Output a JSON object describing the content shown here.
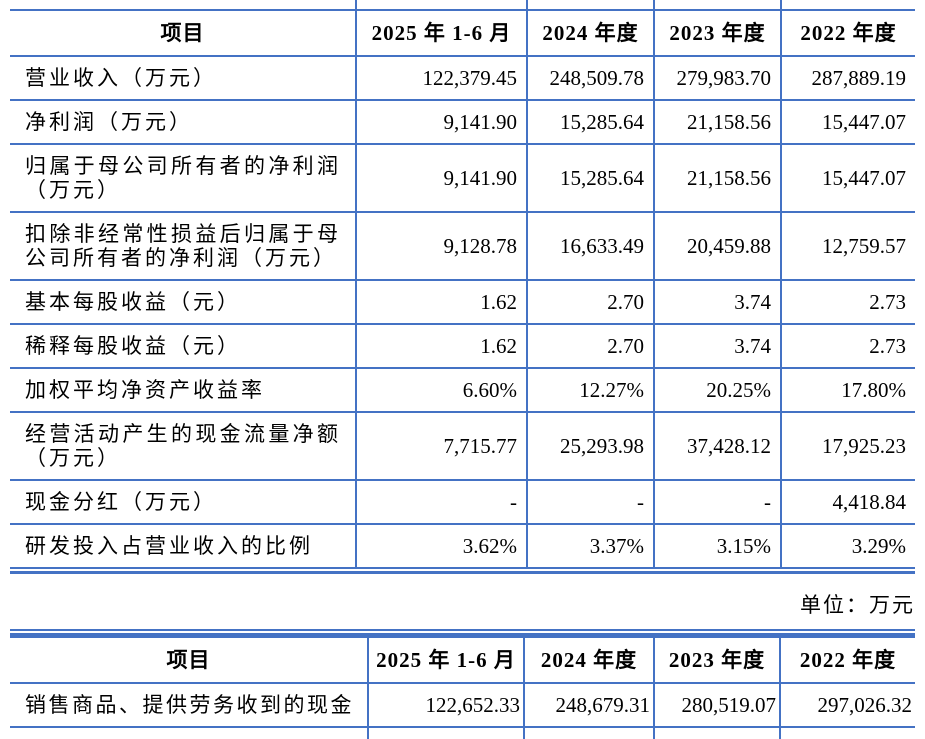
{
  "colors": {
    "table_border": "#4472C4",
    "text": "#000000",
    "background": "#ffffff"
  },
  "unit_label": "单位：万元",
  "table1": {
    "headers": [
      "项目",
      "2025 年 1-6 月",
      "2024 年度",
      "2023 年度",
      "2022 年度"
    ],
    "rows": [
      {
        "label": "营业收入（万元）",
        "values": [
          "122,379.45",
          "248,509.78",
          "279,983.70",
          "287,889.19"
        ]
      },
      {
        "label": "净利润（万元）",
        "values": [
          "9,141.90",
          "15,285.64",
          "21,158.56",
          "15,447.07"
        ]
      },
      {
        "label": "归属于母公司所有者的净利润（万元）",
        "values": [
          "9,141.90",
          "15,285.64",
          "21,158.56",
          "15,447.07"
        ]
      },
      {
        "label": "扣除非经常性损益后归属于母公司所有者的净利润（万元）",
        "values": [
          "9,128.78",
          "16,633.49",
          "20,459.88",
          "12,759.57"
        ]
      },
      {
        "label": "基本每股收益（元）",
        "values": [
          "1.62",
          "2.70",
          "3.74",
          "2.73"
        ]
      },
      {
        "label": "稀释每股收益（元）",
        "values": [
          "1.62",
          "2.70",
          "3.74",
          "2.73"
        ]
      },
      {
        "label": "加权平均净资产收益率",
        "values": [
          "6.60%",
          "12.27%",
          "20.25%",
          "17.80%"
        ]
      },
      {
        "label": "经营活动产生的现金流量净额（万元）",
        "values": [
          "7,715.77",
          "25,293.98",
          "37,428.12",
          "17,925.23"
        ]
      },
      {
        "label": "现金分红（万元）",
        "values": [
          "-",
          "-",
          "-",
          "4,418.84"
        ]
      },
      {
        "label": "研发投入占营业收入的比例",
        "values": [
          "3.62%",
          "3.37%",
          "3.15%",
          "3.29%"
        ]
      }
    ]
  },
  "table2": {
    "headers": [
      "项目",
      "2025 年 1-6 月",
      "2024 年度",
      "2023 年度",
      "2022 年度"
    ],
    "rows": [
      {
        "label": "销售商品、提供劳务收到的现金",
        "values": [
          "122,652.33",
          "248,679.31",
          "280,519.07",
          "297,026.32"
        ]
      }
    ]
  }
}
